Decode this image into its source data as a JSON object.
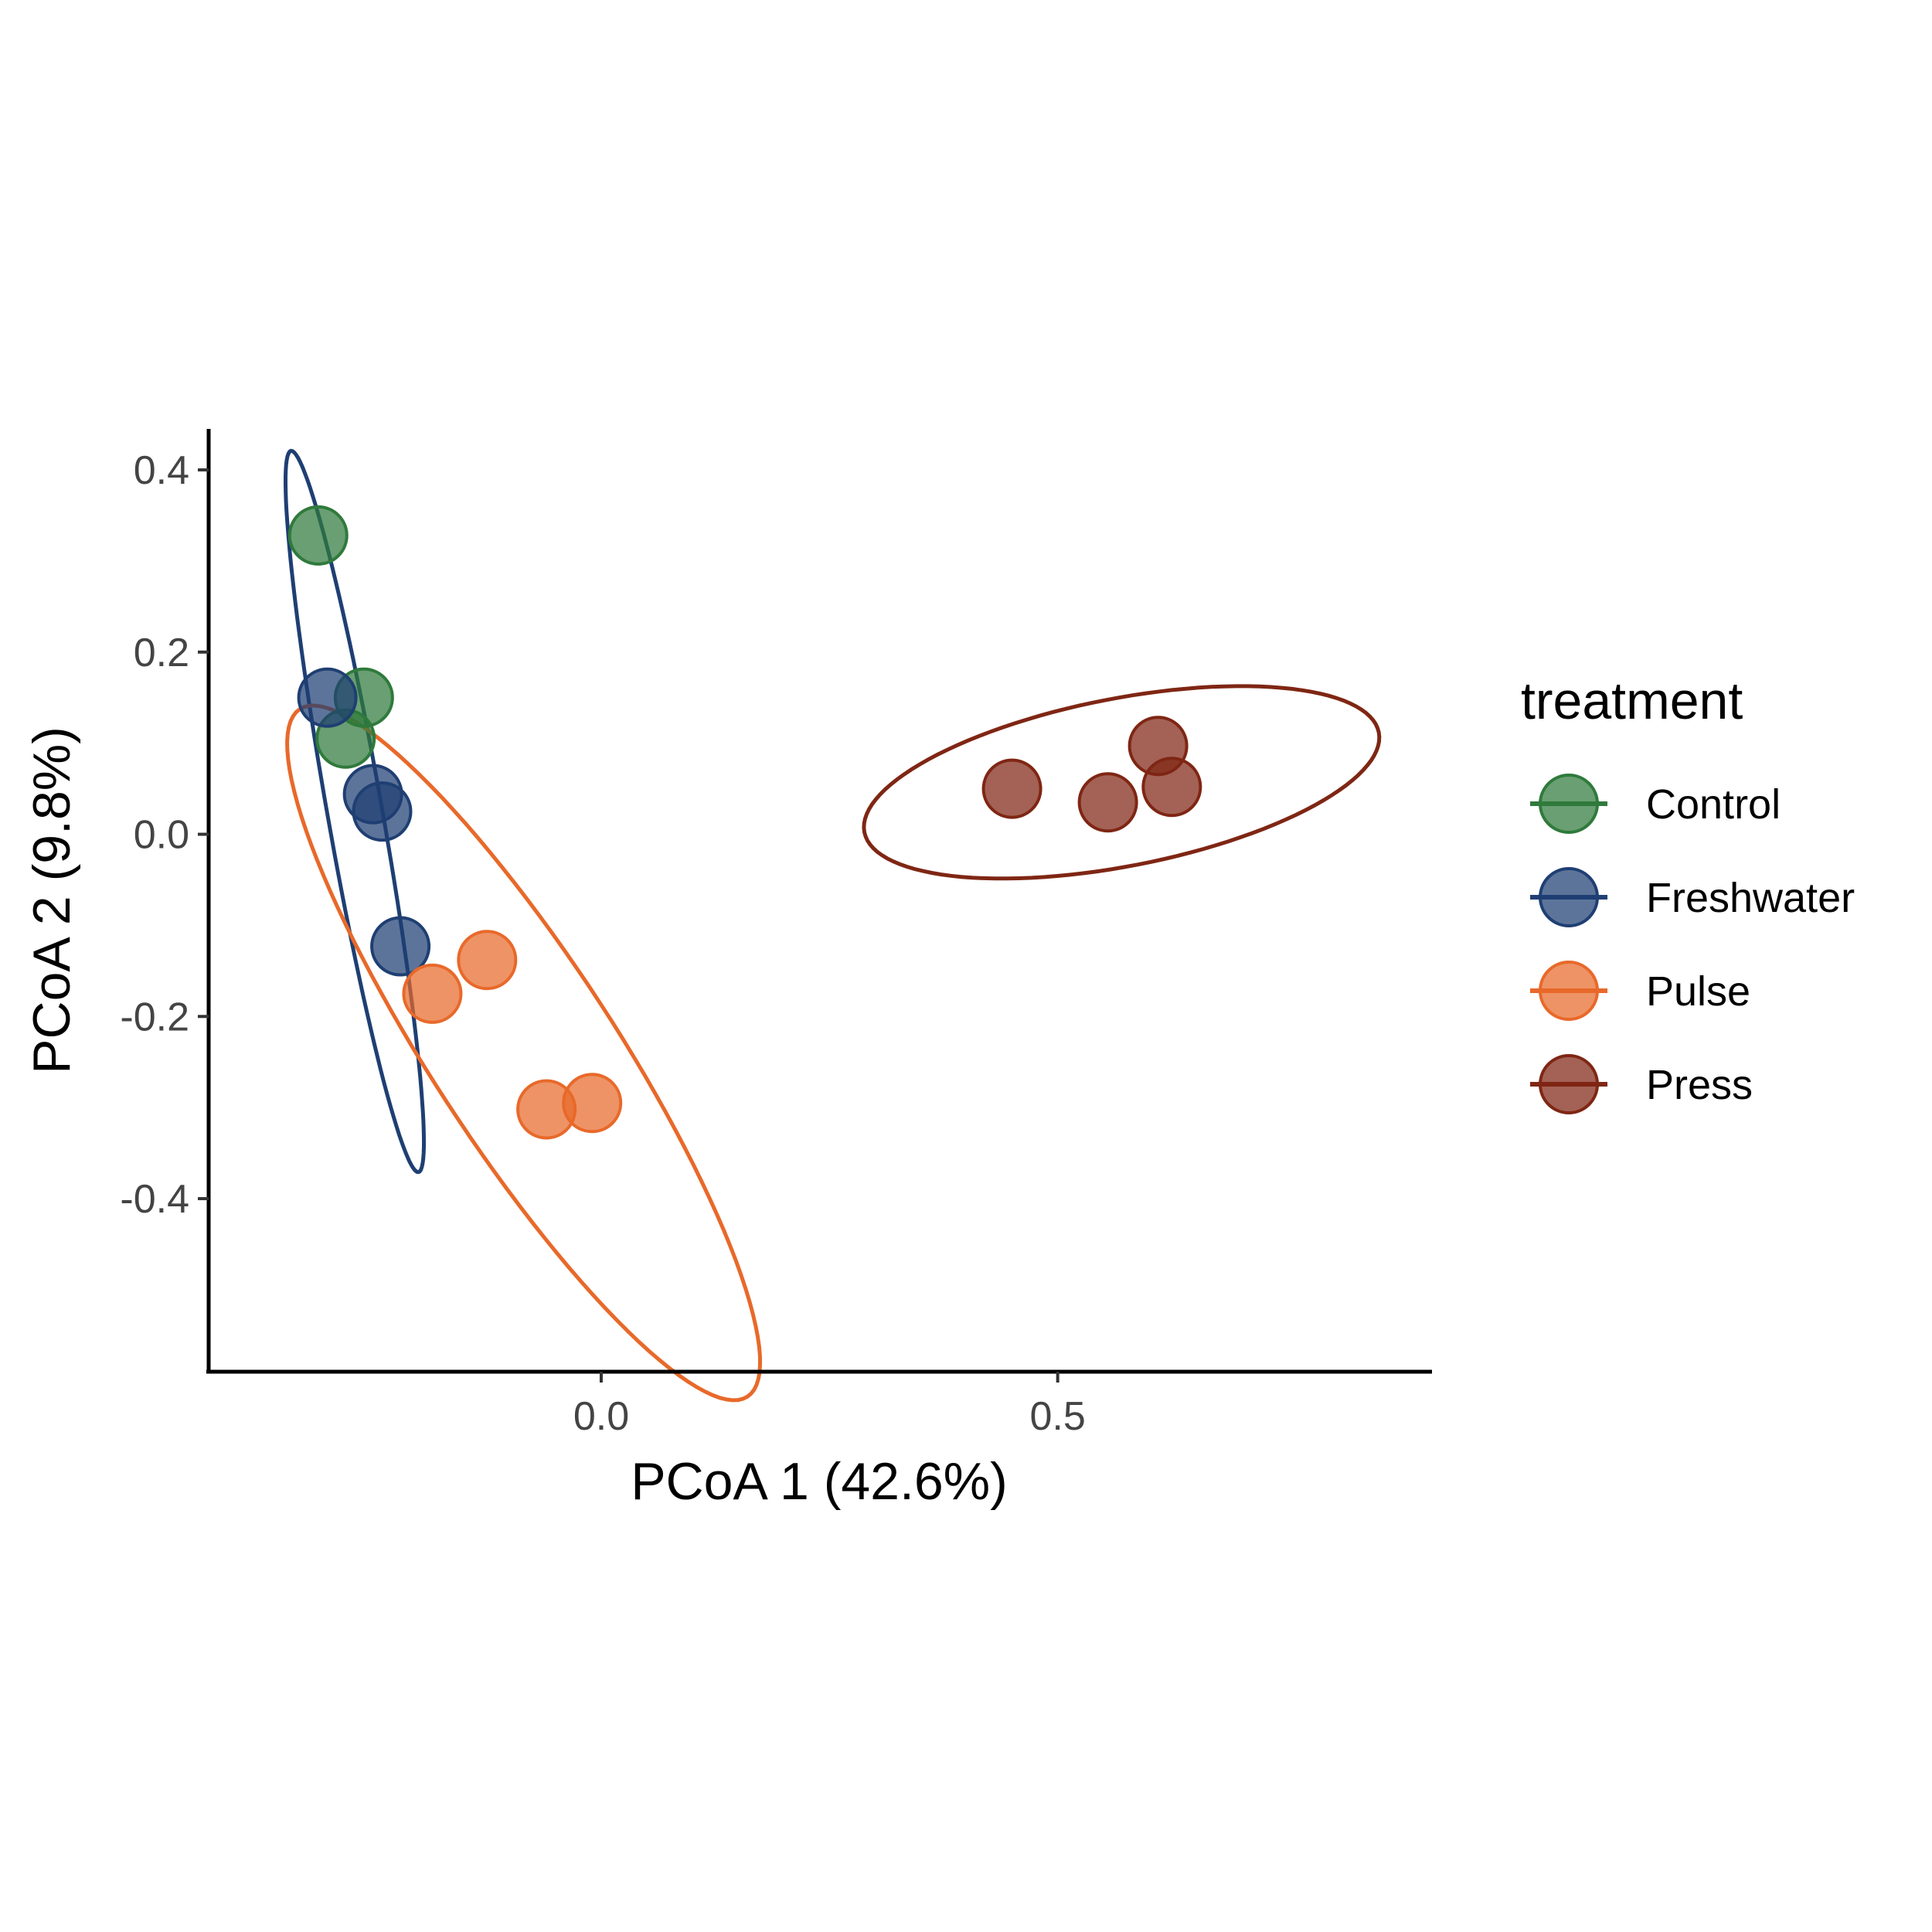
{
  "chart_data": {
    "type": "scatter",
    "title": "",
    "xlabel": "PCoA 1 (42.6%)",
    "ylabel": "PCoA 2 (9.8%)",
    "xlim": [
      -0.43,
      0.91
    ],
    "ylim": [
      -0.59,
      0.445
    ],
    "xticks": [
      0.0,
      0.5
    ],
    "xtick_labels": [
      "0.0",
      "0.5"
    ],
    "yticks": [
      0.4,
      0.2,
      0.0,
      -0.2,
      -0.4
    ],
    "ytick_labels": [
      "0.4",
      "0.2",
      "0.0",
      "-0.2",
      "-0.4"
    ],
    "grid": false,
    "legend": {
      "title": "treatment",
      "position": "right"
    },
    "series": [
      {
        "name": "Control",
        "color": "#2f7a3c",
        "points": [
          [
            -0.31,
            0.328
          ],
          [
            -0.26,
            0.15
          ],
          [
            -0.28,
            0.105
          ]
        ],
        "ellipse": null
      },
      {
        "name": "Freshwater",
        "color": "#1f3f73",
        "points": [
          [
            -0.3,
            0.15
          ],
          [
            -0.25,
            0.044
          ],
          [
            -0.24,
            0.025
          ],
          [
            -0.22,
            -0.123
          ]
        ],
        "ellipse": {
          "cx": -0.27,
          "cy": 0.025,
          "rx": 0.402,
          "ry": 0.03,
          "angle_deg": -80
        }
      },
      {
        "name": "Pulse",
        "color": "#e8692a",
        "points": [
          [
            -0.125,
            -0.138
          ],
          [
            -0.185,
            -0.175
          ],
          [
            -0.06,
            -0.302
          ],
          [
            -0.01,
            -0.295
          ]
        ],
        "ellipse": {
          "cx": -0.085,
          "cy": -0.24,
          "rx": 0.45,
          "ry": 0.1,
          "angle_deg": -57
        }
      },
      {
        "name": "Press",
        "color": "#7f2614",
        "points": [
          [
            0.45,
            0.05
          ],
          [
            0.555,
            0.035
          ],
          [
            0.61,
            0.097
          ],
          [
            0.625,
            0.052
          ]
        ],
        "ellipse": {
          "cx": 0.57,
          "cy": 0.057,
          "rx": 0.287,
          "ry": 0.092,
          "angle_deg": 11
        }
      }
    ]
  }
}
